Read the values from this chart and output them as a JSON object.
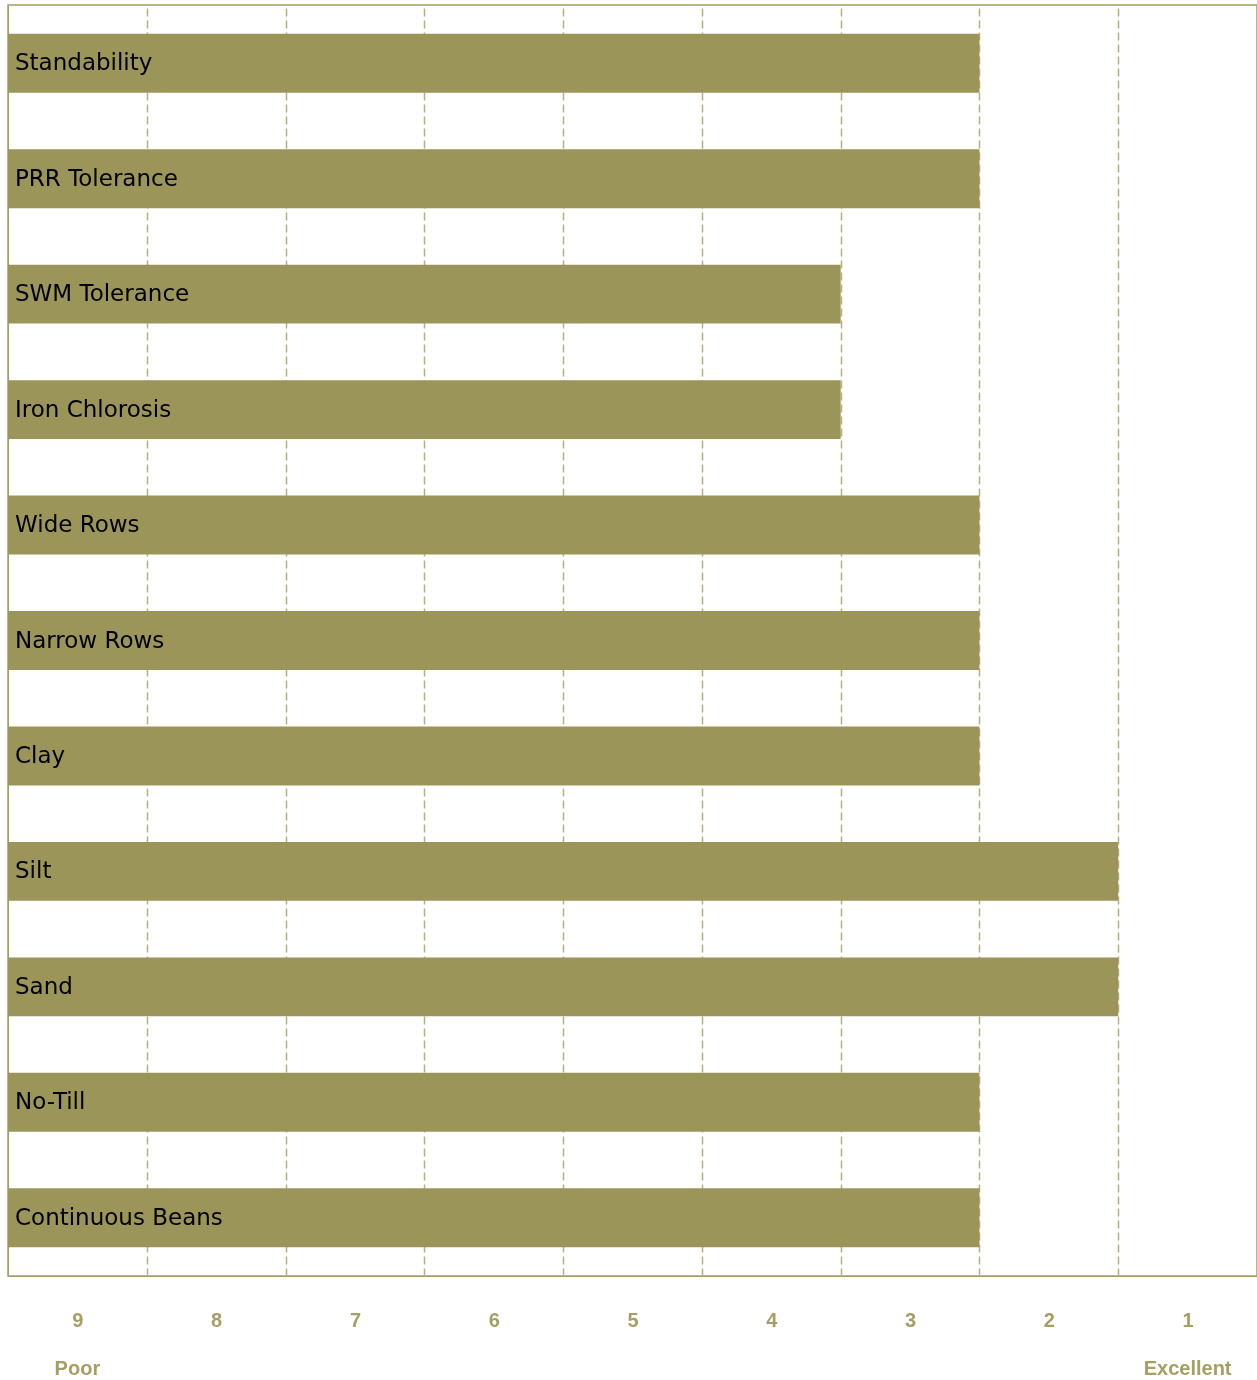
{
  "chart_data": {
    "type": "bar",
    "orientation": "horizontal",
    "categories": [
      "Standability",
      "PRR Tolerance",
      "SWM Tolerance",
      "Iron Chlorosis",
      "Wide Rows",
      "Narrow Rows",
      "Clay",
      "Silt",
      "Sand",
      "No-Till",
      "Continuous Beans"
    ],
    "values": [
      -7,
      -7,
      -6,
      -6,
      -7,
      -7,
      -7,
      -8,
      -8,
      -7,
      -7
    ],
    "base": [
      9.5,
      9.5,
      9.5,
      9.5,
      9.5,
      9.5,
      9.5,
      9.5,
      9.5,
      9.5,
      9.5
    ],
    "color": "#9b955a",
    "xlim": [
      9.5,
      0.5
    ],
    "xticks": [
      9,
      {
        "value": 8.5,
        "label": null
      },
      8,
      {
        "value": 7.5,
        "label": null
      },
      7,
      {
        "value": 6.5,
        "label": null
      },
      6,
      {
        "value": 5.5,
        "label": null
      },
      5,
      {
        "value": 4.5,
        "label": null
      },
      4,
      {
        "value": 3.5,
        "label": null
      },
      3,
      {
        "value": 2.5,
        "label": null
      },
      2,
      {
        "value": 1.5,
        "label": null
      },
      1
    ],
    "grid": "x",
    "annotations": [
      "Poor",
      "Excellent"
    ]
  }
}
